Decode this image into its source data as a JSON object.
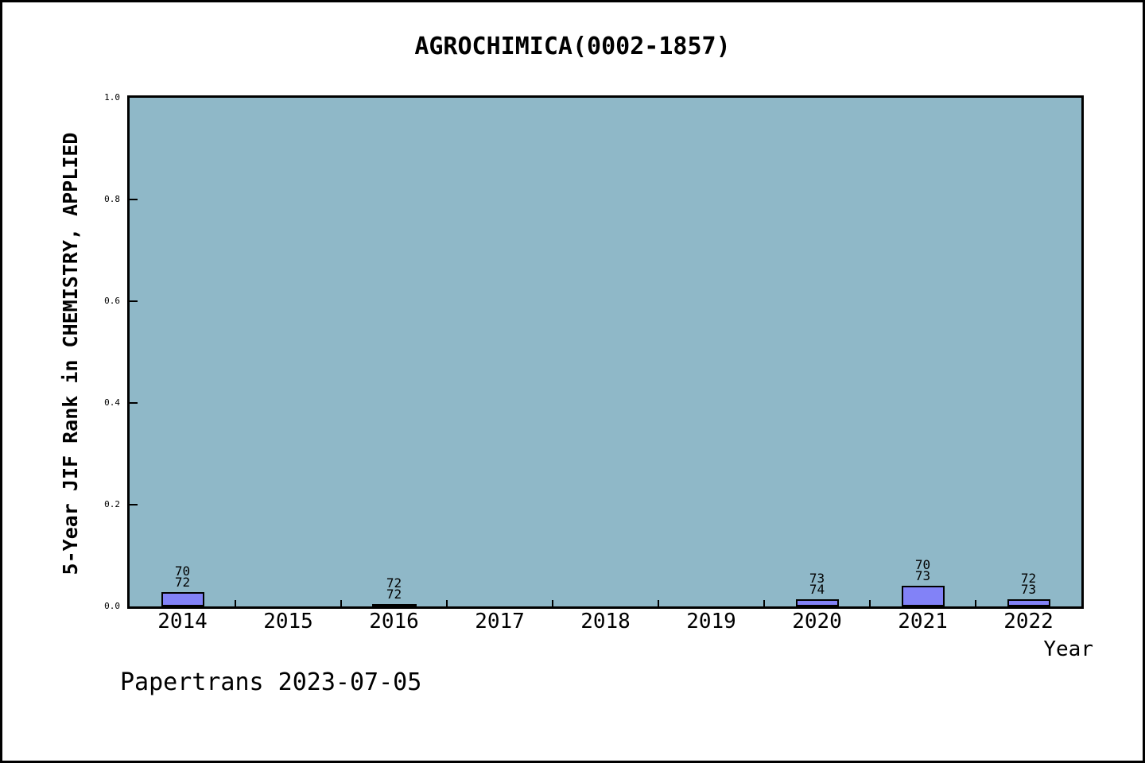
{
  "chart_data": {
    "type": "bar",
    "title": "AGROCHIMICA(0002-1857)",
    "xlabel": "Year",
    "ylabel": "5-Year JIF Rank in CHEMISTRY, APPLIED",
    "ylim": [
      0.0,
      1.0
    ],
    "ytick_labels": [
      "0.0",
      "0.2",
      "0.4",
      "0.6",
      "0.8",
      "1.0"
    ],
    "ytick_values": [
      0.0,
      0.2,
      0.4,
      0.6,
      0.8,
      1.0
    ],
    "categories": [
      "2014",
      "2015",
      "2016",
      "2017",
      "2018",
      "2019",
      "2020",
      "2021",
      "2022"
    ],
    "bars": [
      {
        "category": "2014",
        "rank": 70,
        "total": 72,
        "value": 0.0278,
        "label_lines": [
          "70",
          "72"
        ]
      },
      {
        "category": "2016",
        "rank": 72,
        "total": 72,
        "value": 0.0,
        "label_lines": [
          "72",
          "72"
        ]
      },
      {
        "category": "2020",
        "rank": 73,
        "total": 74,
        "value": 0.0135,
        "label_lines": [
          "73",
          "74"
        ]
      },
      {
        "category": "2021",
        "rank": 70,
        "total": 73,
        "value": 0.0411,
        "label_lines": [
          "70",
          "73"
        ]
      },
      {
        "category": "2022",
        "rank": 72,
        "total": 73,
        "value": 0.0137,
        "label_lines": [
          "72",
          "73"
        ]
      }
    ],
    "grid": false,
    "legend": "none",
    "footer": "Papertrans 2023-07-05",
    "colors": {
      "plot_bg": "#8fb8c8",
      "bar_fill": "#8282f7",
      "bar_border": "#000000",
      "axis": "#000000",
      "text": "#000000",
      "figure_bg": "#ffffff"
    }
  }
}
